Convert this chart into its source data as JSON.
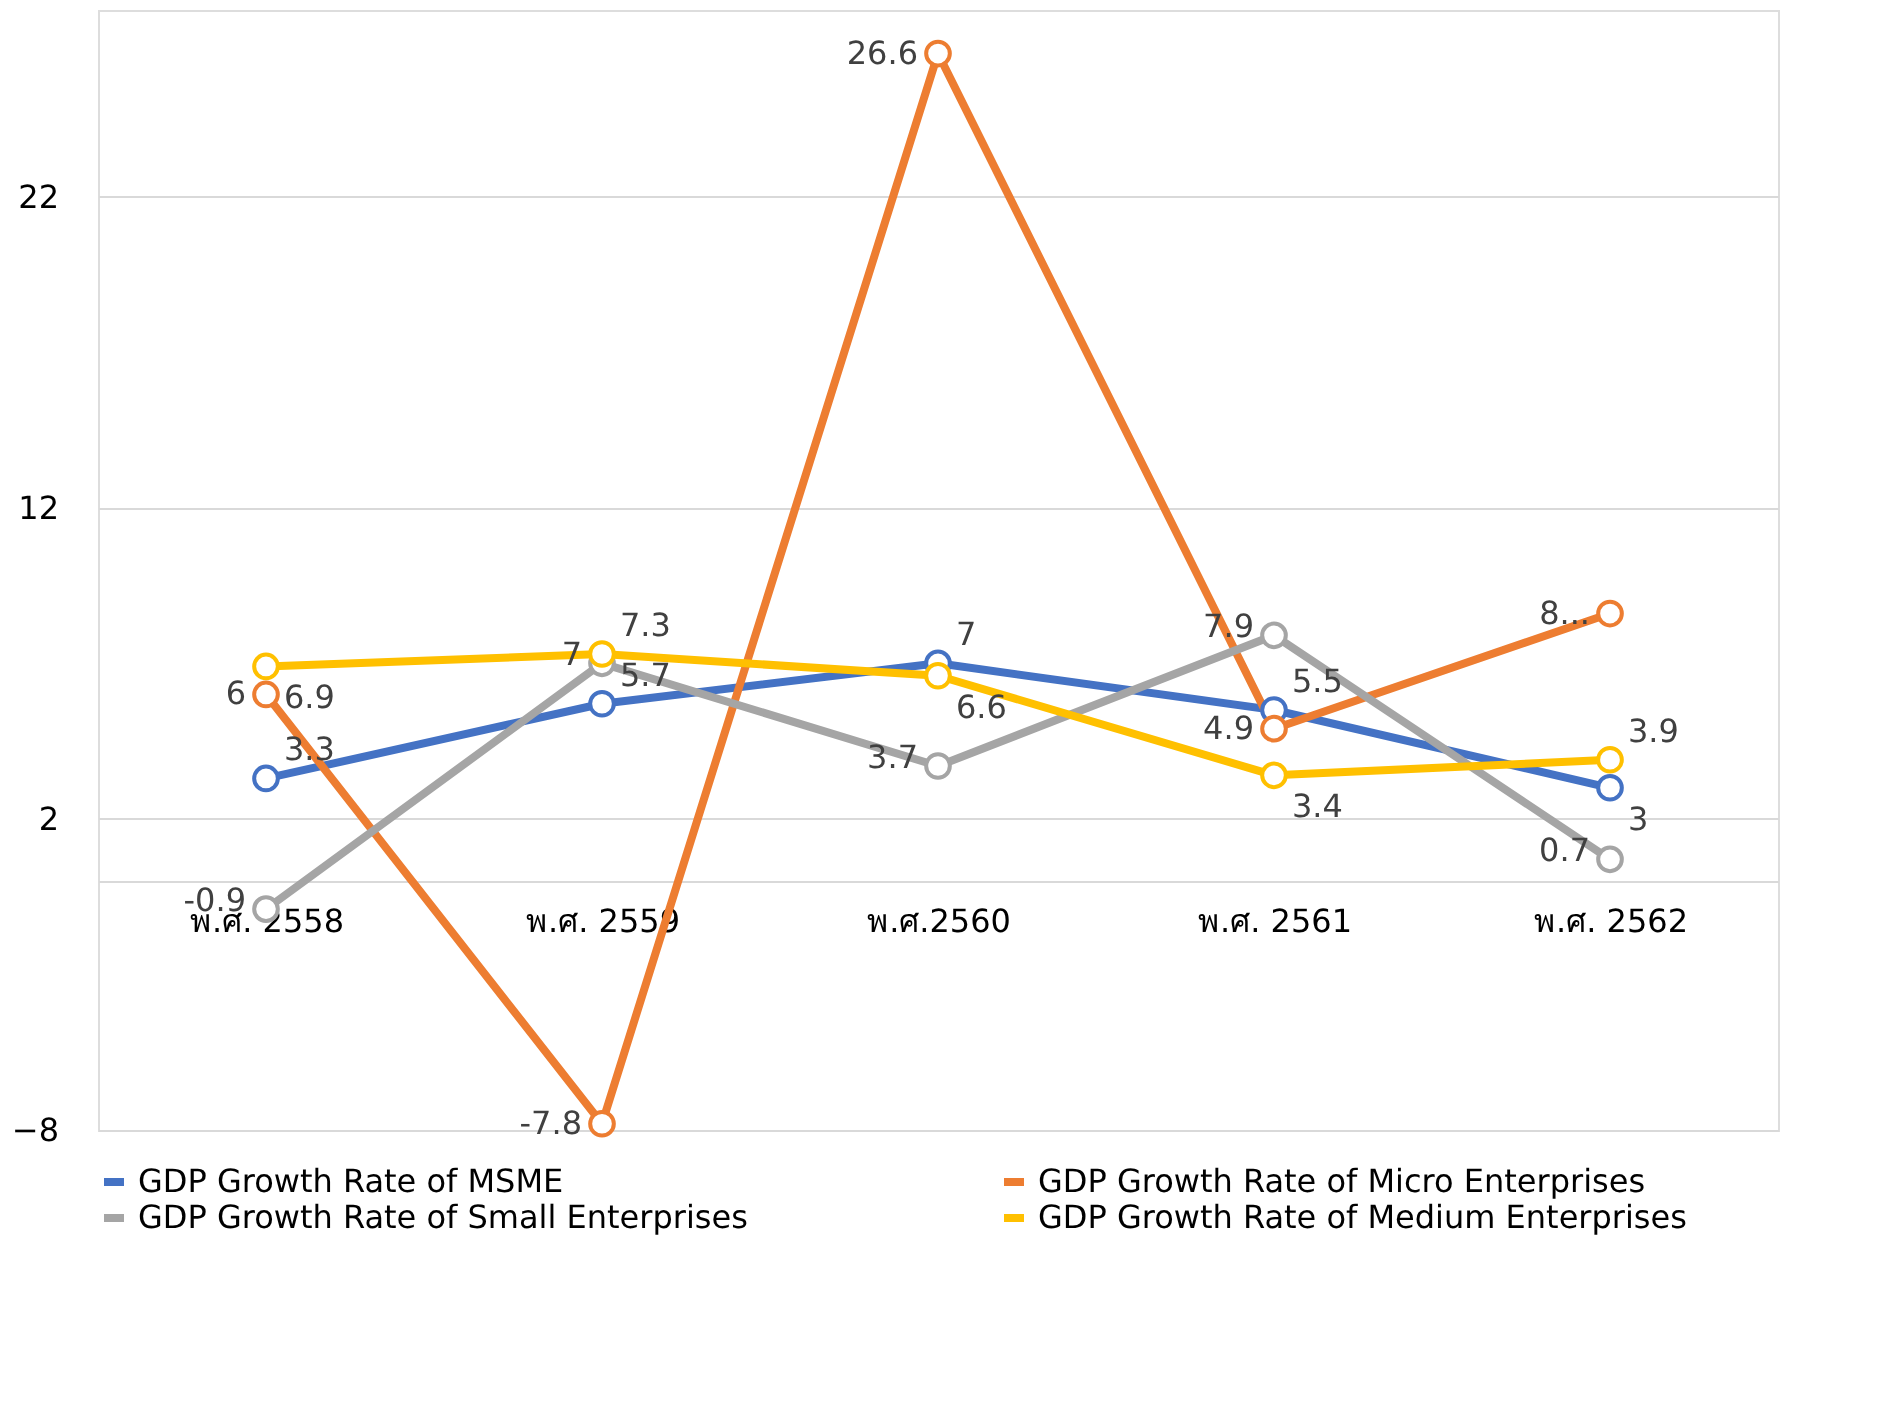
{
  "chart_data": {
    "type": "line",
    "categories": [
      "พ.ศ. 2558",
      "พ.ศ. 2559",
      "พ.ศ.2560",
      "พ.ศ. 2561",
      "พ.ศ. 2562"
    ],
    "series": [
      {
        "name": "GDP Growth Rate of MSME",
        "color": "#4472c4",
        "values": [
          3.3,
          5.7,
          7,
          5.5,
          3
        ]
      },
      {
        "name": "GDP Growth Rate of Micro Enterprises",
        "color": "#ed7d31",
        "values": [
          6,
          -7.8,
          26.6,
          4.9,
          8.6
        ],
        "value_labels": [
          "6",
          "-7.8",
          "26.6",
          "4.9",
          "8..."
        ]
      },
      {
        "name": "GDP Growth Rate of Small Enterprises",
        "color": "#a5a5a5",
        "values": [
          -0.9,
          7,
          3.7,
          7.9,
          0.7
        ]
      },
      {
        "name": "GDP Growth Rate of Medium Enterprises",
        "color": "#ffc000",
        "values": [
          6.9,
          7.3,
          6.6,
          3.4,
          3.9
        ]
      }
    ],
    "ylim": [
      -8,
      28
    ],
    "yticks": [
      -8,
      2,
      12,
      22
    ],
    "grid": "y",
    "legend": "bottom",
    "marker": "circle",
    "line_style": "solid",
    "data_labels": true
  }
}
